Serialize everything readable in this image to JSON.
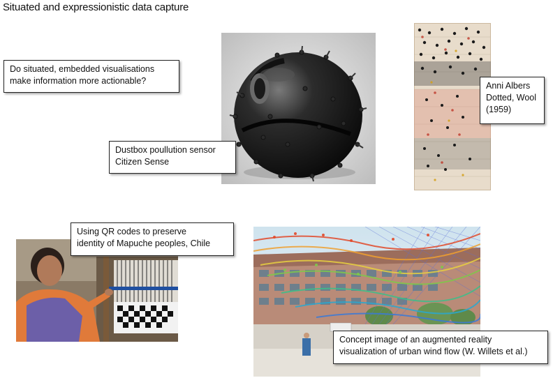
{
  "slide": {
    "title": "Situated and expressionistic data capture"
  },
  "callouts": {
    "question": {
      "lines": [
        "Do situated, embedded visualisations",
        "make information more actionable?"
      ]
    },
    "dustbox": {
      "lines": [
        "Dustbox poullution sensor",
        "Citizen Sense"
      ]
    },
    "albers": {
      "lines": [
        "Anni Albers",
        "Dotted, Wool",
        "(1959)"
      ]
    },
    "qr": {
      "lines": [
        "Using QR codes to preserve",
        "identity of Mapuche peoples, Chile"
      ]
    },
    "ar": {
      "lines": [
        "Concept image of an augmented reality",
        "visualization of urban wind flow (W. Willets et al.)"
      ]
    }
  },
  "images": {
    "dustbox": "dustbox-sensor-photo",
    "albers": "anni-albers-dotted-weaving",
    "weaver": "mapuche-weaver-photo",
    "ar": "augmented-reality-wind-flow"
  }
}
